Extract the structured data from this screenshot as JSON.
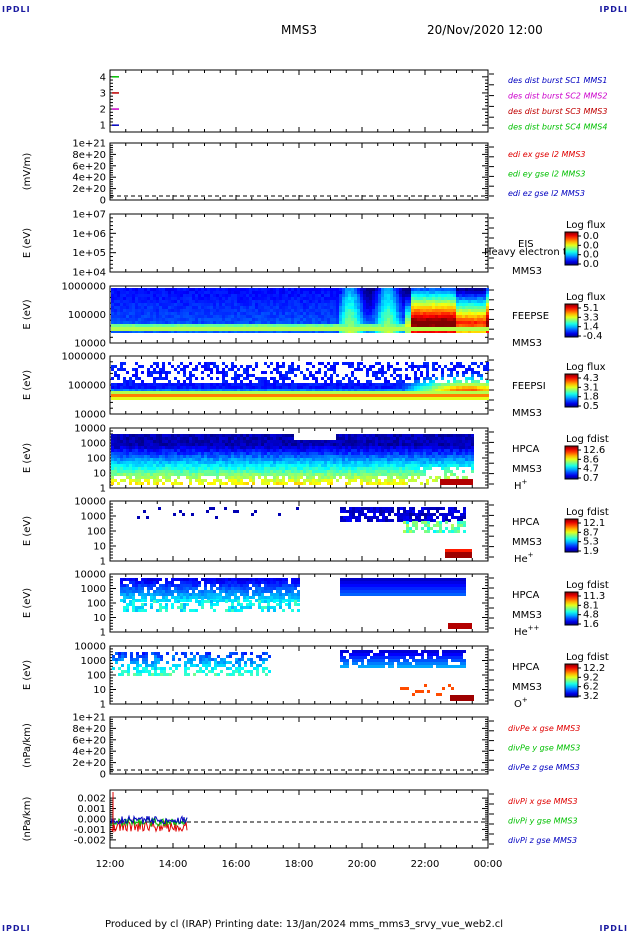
{
  "corner_labels": {
    "tl": "IPDLI",
    "tr": "IPDLI",
    "bl": "IPDLI",
    "br": "IPDLI"
  },
  "header": {
    "spacecraft": "MMS3",
    "datetime": "20/Nov/2020 12:00"
  },
  "footer": {
    "text": "Produced by cl (IRAP)   Printing date: 13/Jan/2024   mms_mms3_srvy_vue_web2.cl"
  },
  "x_axis": {
    "ticks": [
      "12:00",
      "14:00",
      "16:00",
      "18:00",
      "20:00",
      "22:00",
      "00:00"
    ]
  },
  "colors": {
    "red": "#e00000",
    "green": "#00c000",
    "blue": "#0000c0",
    "magenta": "#cc00cc"
  },
  "chart_data": [
    {
      "type": "line",
      "panel": "burst",
      "ticks": [
        "4",
        "3",
        "2",
        "1"
      ],
      "ylim": [
        0.5,
        4.5
      ],
      "legend": [
        {
          "text": "des dist burst SC1 MMS1",
          "color": "#0000c0"
        },
        {
          "text": "des dist burst SC2 MMS2",
          "color": "#cc00cc"
        },
        {
          "text": "des dist burst SC3 MMS3",
          "color": "#c00000"
        },
        {
          "text": "des dist burst SC4 MMS4",
          "color": "#00c000"
        }
      ]
    },
    {
      "type": "line",
      "panel": "edi",
      "ylabel": "(mV/m)",
      "ticks": [
        "1e+21",
        "8e+20",
        "6e+20",
        "4e+20",
        "2e+20",
        "0"
      ],
      "legend": [
        {
          "text": "edi ex gse l2 MMS3",
          "color": "#e00000"
        },
        {
          "text": "edi ey gse l2 MMS3",
          "color": "#00c000"
        },
        {
          "text": "edi ez gse l2 MMS3",
          "color": "#0000c0"
        }
      ]
    },
    {
      "type": "heatmap",
      "panel": "eis",
      "ylabel": "E (eV)",
      "ticks": [
        "1e+07",
        "1e+06",
        "1e+05",
        "1e+04"
      ],
      "side": [
        "EIS",
        "MMS3"
      ],
      "overflow_text": "Heavy electron to",
      "cb_title": "Log flux",
      "cb_ticks": [
        "0.0",
        "0.0",
        "0.0",
        "0.0"
      ]
    },
    {
      "type": "heatmap",
      "panel": "feepse",
      "ylabel": "E (eV)",
      "ticks": [
        "1000000",
        "100000",
        "10000"
      ],
      "side": [
        "FEEPSE",
        "MMS3"
      ],
      "cb_title": "Log flux",
      "cb_ticks": [
        "5.1",
        "3.3",
        "1.4",
        "-0.4"
      ]
    },
    {
      "type": "heatmap",
      "panel": "feepsi",
      "ylabel": "E (eV)",
      "ticks": [
        "1000000",
        "100000",
        "10000"
      ],
      "side": [
        "FEEPSI",
        "MMS3"
      ],
      "cb_title": "Log flux",
      "cb_ticks": [
        "4.3",
        "3.1",
        "1.8",
        "0.5"
      ]
    },
    {
      "type": "heatmap",
      "panel": "hpca_h",
      "ylabel": "E (eV)",
      "ticks": [
        "10000",
        "1000",
        "100",
        "10",
        "1"
      ],
      "side": [
        "HPCA",
        "MMS3"
      ],
      "species": "H",
      "charge": "+",
      "cb_title": "Log fdist",
      "cb_ticks": [
        "12.6",
        "8.6",
        "4.7",
        "0.7"
      ]
    },
    {
      "type": "heatmap",
      "panel": "hpca_he",
      "ylabel": "E (eV)",
      "ticks": [
        "10000",
        "1000",
        "100",
        "10",
        "1"
      ],
      "side": [
        "HPCA",
        "MMS3"
      ],
      "species": "He",
      "charge": "+",
      "cb_title": "Log fdist",
      "cb_ticks": [
        "12.1",
        "8.7",
        "5.3",
        "1.9"
      ]
    },
    {
      "type": "heatmap",
      "panel": "hpca_hepp",
      "ylabel": "E (eV)",
      "ticks": [
        "10000",
        "1000",
        "100",
        "10",
        "1"
      ],
      "side": [
        "HPCA",
        "MMS3"
      ],
      "species": "He",
      "charge": "++",
      "cb_title": "Log fdist",
      "cb_ticks": [
        "11.3",
        "8.1",
        "4.8",
        "1.6"
      ]
    },
    {
      "type": "heatmap",
      "panel": "hpca_o",
      "ylabel": "E (eV)",
      "ticks": [
        "10000",
        "1000",
        "100",
        "10",
        "1"
      ],
      "side": [
        "HPCA",
        "MMS3"
      ],
      "species": "O",
      "charge": "+",
      "cb_title": "Log fdist",
      "cb_ticks": [
        "12.2",
        "9.2",
        "6.2",
        "3.2"
      ]
    },
    {
      "type": "line",
      "panel": "divpe",
      "ylabel": "(nPa/km)",
      "ticks": [
        "1e+21",
        "8e+20",
        "6e+20",
        "4e+20",
        "2e+20",
        "0"
      ],
      "legend": [
        {
          "text": "divPe x gse MMS3",
          "color": "#e00000"
        },
        {
          "text": "divPe y gse MMS3",
          "color": "#00c000"
        },
        {
          "text": "divPe z gse MMS3",
          "color": "#0000c0"
        }
      ]
    },
    {
      "type": "line",
      "panel": "divpi",
      "ylabel": "(nPa/km)",
      "ticks": [
        "0.002",
        "0.001",
        "0.000",
        "-0.001",
        "-0.002"
      ],
      "ylim": [
        -0.0025,
        0.0025
      ],
      "legend": [
        {
          "text": "divPi x gse MMS3",
          "color": "#e00000"
        },
        {
          "text": "divPi y gse MMS3",
          "color": "#00c000"
        },
        {
          "text": "divPi z gse MMS3",
          "color": "#0000c0"
        }
      ]
    }
  ]
}
